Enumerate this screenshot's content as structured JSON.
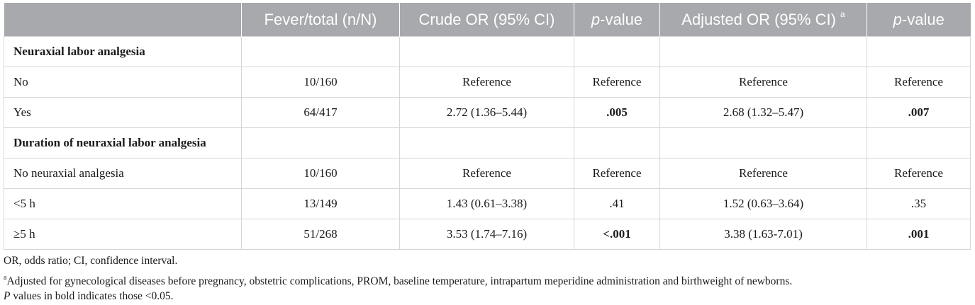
{
  "headers": {
    "col0": "",
    "col1": "Fever/total (n/N)",
    "col2": "Crude OR (95% CI)",
    "col3_italic": "p",
    "col3_rest": "-value",
    "col4": "Adjusted OR (95% CI)",
    "col4_sup": "a",
    "col5_italic": "p",
    "col5_rest": "-value"
  },
  "rows": [
    {
      "label": "Neuraxial labor analgesia",
      "section": true,
      "fever": "",
      "crude": "",
      "p1": "",
      "adj": "",
      "p2": ""
    },
    {
      "label": "No",
      "fever": "10/160",
      "crude": "Reference",
      "p1": "Reference",
      "adj": "Reference",
      "p2": "Reference"
    },
    {
      "label": "Yes",
      "fever": "64/417",
      "crude": "2.72 (1.36–5.44)",
      "p1": ".005",
      "adj": "2.68 (1.32–5.47)",
      "p2": ".007"
    },
    {
      "label": "Duration of neuraxial labor analgesia",
      "section": true,
      "fever": "",
      "crude": "",
      "p1": "",
      "adj": "",
      "p2": ""
    },
    {
      "label": "No neuraxial analgesia",
      "fever": "10/160",
      "crude": "Reference",
      "p1": "Reference",
      "adj": "Reference",
      "p2": "Reference"
    },
    {
      "label": "<5 h",
      "fever": "13/149",
      "crude": "1.43 (0.61–3.38)",
      "p1": ".41",
      "adj": "1.52 (0.63–3.64)",
      "p2": ".35"
    },
    {
      "label": "≥5 h",
      "fever": "51/268",
      "crude": "3.53 (1.74–7.16)",
      "p1": "<.001",
      "adj": "3.38 (1.63-7.01)",
      "p2": ".001"
    }
  ],
  "notes": {
    "abbrev": "OR, odds ratio; CI, confidence interval.",
    "footnote_a_mark": "a",
    "footnote_a": "Adjusted for gynecological diseases before pregnancy, obstetric complications, PROM, baseline temperature, intrapartum meperidine administration and birthweight of newborns.",
    "pvalue_italic": "P",
    "pvalue_rest": " values in bold indicates those <0.05."
  }
}
